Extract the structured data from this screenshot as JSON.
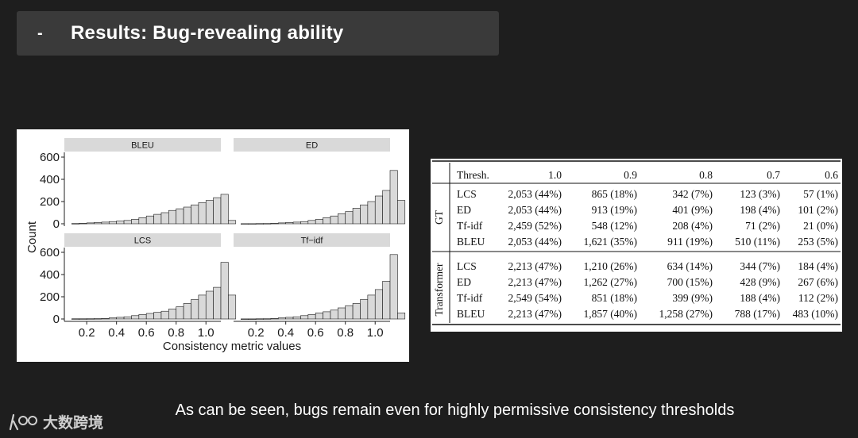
{
  "slide": {
    "bullet": "-",
    "title": "Results: Bug-revealing ability",
    "caption": "As can be seen, bugs remain even for highly permissive consistency thresholds"
  },
  "watermark": {
    "logo_text": "大数跨境"
  },
  "colors": {
    "bar_fill": "#d9d9d9",
    "strip": "#d9d9d9",
    "bar_stroke": "#1a1a1a"
  },
  "chart_data": {
    "type": "bar",
    "layout": "facet-grid-2x2",
    "xlabel": "Consistency metric values",
    "ylabel": "Count",
    "xlim": [
      0.05,
      1.1
    ],
    "ylim": [
      0,
      600
    ],
    "x_ticks": [
      "0.2",
      "0.4",
      "0.6",
      "0.8",
      "1.0"
    ],
    "y_ticks": [
      "0",
      "200",
      "400",
      "600"
    ],
    "bin_start": 0.1,
    "bin_width": 0.05,
    "panels": [
      {
        "name": "BLEU",
        "values": [
          3,
          5,
          8,
          12,
          15,
          20,
          25,
          30,
          40,
          55,
          70,
          85,
          100,
          120,
          135,
          150,
          170,
          190,
          210,
          235,
          265,
          30
        ]
      },
      {
        "name": "ED",
        "values": [
          1,
          1,
          2,
          3,
          5,
          8,
          12,
          15,
          20,
          30,
          40,
          55,
          70,
          90,
          110,
          140,
          170,
          200,
          250,
          300,
          480,
          210
        ]
      },
      {
        "name": "LCS",
        "values": [
          2,
          2,
          3,
          4,
          5,
          10,
          15,
          20,
          30,
          40,
          50,
          60,
          70,
          90,
          110,
          140,
          175,
          215,
          250,
          285,
          510,
          215
        ]
      },
      {
        "name": "Tf−idf",
        "values": [
          1,
          1,
          2,
          3,
          5,
          10,
          15,
          20,
          30,
          40,
          55,
          65,
          80,
          100,
          120,
          140,
          175,
          215,
          265,
          340,
          580,
          55
        ]
      }
    ]
  },
  "table": {
    "threshold_label": "Thresh.",
    "columns": [
      "1.0",
      "0.9",
      "0.8",
      "0.7",
      "0.6"
    ],
    "groups": [
      {
        "name": "GT",
        "rows": [
          {
            "metric": "LCS",
            "cells": [
              "2,053 (44%)",
              "865 (18%)",
              "342 (7%)",
              "123 (3%)",
              "57 (1%)"
            ]
          },
          {
            "metric": "ED",
            "cells": [
              "2,053 (44%)",
              "913 (19%)",
              "401 (9%)",
              "198 (4%)",
              "101 (2%)"
            ]
          },
          {
            "metric": "Tf-idf",
            "cells": [
              "2,459 (52%)",
              "548 (12%)",
              "208 (4%)",
              "71 (2%)",
              "21 (0%)"
            ]
          },
          {
            "metric": "BLEU",
            "cells": [
              "2,053 (44%)",
              "1,621 (35%)",
              "911 (19%)",
              "510 (11%)",
              "253 (5%)"
            ]
          }
        ]
      },
      {
        "name": "Transformer",
        "rows": [
          {
            "metric": "LCS",
            "cells": [
              "2,213 (47%)",
              "1,210 (26%)",
              "634 (14%)",
              "344 (7%)",
              "184 (4%)"
            ]
          },
          {
            "metric": "ED",
            "cells": [
              "2,213 (47%)",
              "1,262 (27%)",
              "700 (15%)",
              "428 (9%)",
              "267 (6%)"
            ]
          },
          {
            "metric": "Tf-idf",
            "cells": [
              "2,549 (54%)",
              "851 (18%)",
              "399 (9%)",
              "188 (4%)",
              "112 (2%)"
            ]
          },
          {
            "metric": "BLEU",
            "cells": [
              "2,213 (47%)",
              "1,857 (40%)",
              "1,258 (27%)",
              "788 (17%)",
              "483 (10%)"
            ]
          }
        ]
      }
    ]
  }
}
